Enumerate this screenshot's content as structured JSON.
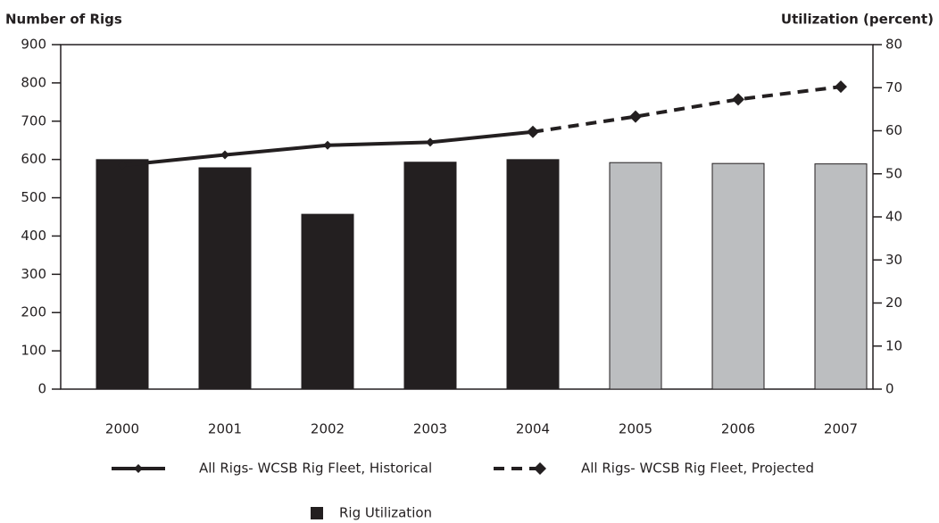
{
  "chart_data": {
    "type": "bar",
    "y_label": "Number of Rigs",
    "y2_label": "Utilization (percent)",
    "categories": [
      "2000",
      "2001",
      "2002",
      "2003",
      "2004",
      "2005",
      "2006",
      "2007"
    ],
    "series": [
      {
        "name": "All Rigs- WCSB Rig Fleet, Historical",
        "type": "line",
        "style": "solid",
        "color": "#231f20",
        "axis": "y",
        "values": [
          585,
          612,
          637,
          645,
          672,
          null,
          null,
          null
        ]
      },
      {
        "name": "All Rigs- WCSB Rig Fleet, Projected",
        "type": "line",
        "style": "dashed",
        "color": "#231f20",
        "axis": "y",
        "values": [
          null,
          null,
          null,
          null,
          672,
          712,
          757,
          790
        ]
      },
      {
        "name": "Rig Utilization",
        "type": "bar",
        "color": "#231f20",
        "axis": "y2",
        "colors": [
          "#231f20",
          "#231f20",
          "#231f20",
          "#231f20",
          "#231f20",
          "#bcbec0",
          "#bcbec0",
          "#bcbec0"
        ],
        "values": [
          53.3,
          51.4,
          40.6,
          52.7,
          53.3,
          52.6,
          52.4,
          52.3
        ]
      }
    ],
    "ylim": [
      0,
      900
    ],
    "yticks": [
      0,
      100,
      200,
      300,
      400,
      500,
      600,
      700,
      800,
      900
    ],
    "y2lim": [
      0,
      80
    ],
    "y2ticks": [
      0,
      10,
      20,
      30,
      40,
      50,
      60,
      70,
      80
    ]
  }
}
